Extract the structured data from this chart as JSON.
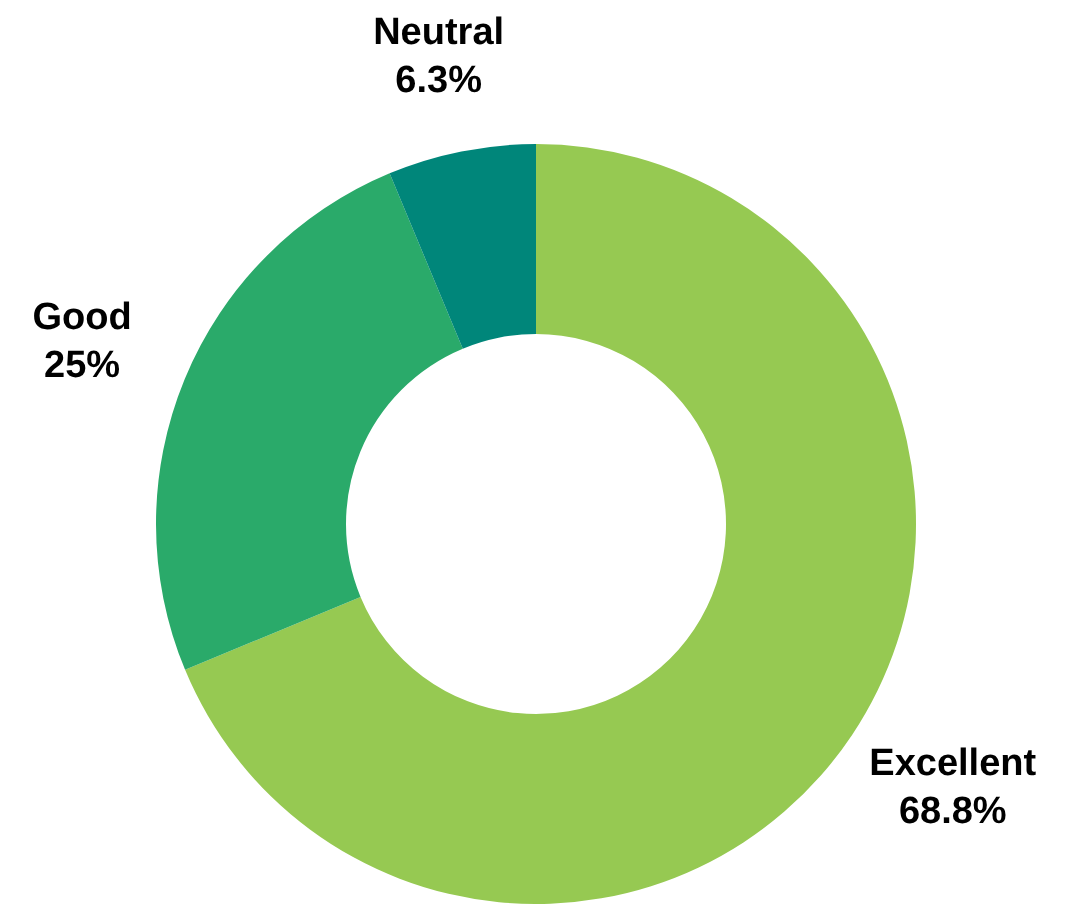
{
  "chart_data": {
    "type": "donut",
    "categories": [
      "Excellent",
      "Good",
      "Neutral"
    ],
    "values": [
      68.8,
      25,
      6.3
    ],
    "colors": [
      "#96c952",
      "#2aaa6a",
      "#00867a"
    ],
    "value_labels": [
      "68.8%",
      "25%",
      "6.3%"
    ],
    "legend": false
  }
}
